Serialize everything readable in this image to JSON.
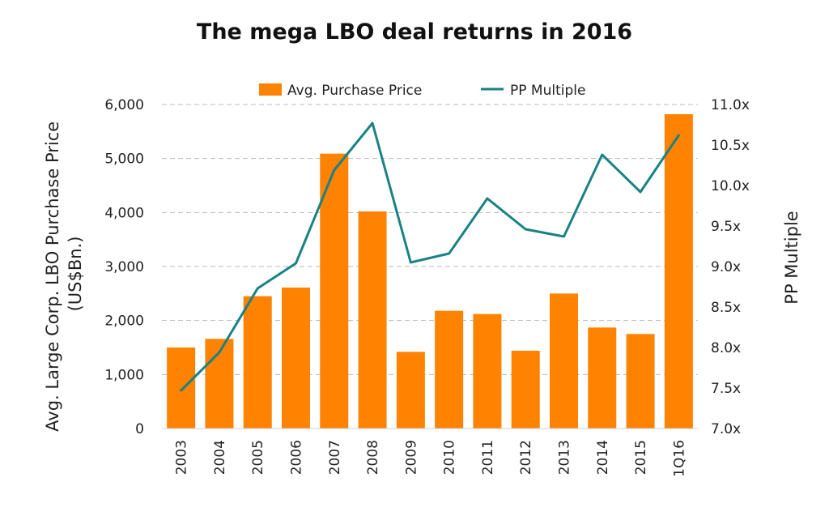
{
  "chart_data": {
    "type": "bar",
    "title": "The mega LBO deal returns in 2016",
    "categories": [
      "2003",
      "2004",
      "2005",
      "2006",
      "2007",
      "2008",
      "2009",
      "2010",
      "2011",
      "2012",
      "2013",
      "2014",
      "2015",
      "1Q16"
    ],
    "series": [
      {
        "name": "Avg. Purchase Price",
        "type": "bar",
        "axis": "left",
        "color": "#ff8200",
        "values": [
          1500,
          1660,
          2450,
          2610,
          5090,
          4020,
          1420,
          2180,
          2120,
          1440,
          2500,
          1870,
          1750,
          5820
        ]
      },
      {
        "name": "PP Multiple",
        "type": "line",
        "axis": "right",
        "color": "#1a8285",
        "values": [
          7.47,
          7.94,
          8.73,
          9.04,
          10.19,
          10.77,
          9.05,
          9.16,
          9.84,
          9.46,
          9.37,
          10.38,
          9.92,
          10.62
        ]
      }
    ],
    "y_left": {
      "label_lines": [
        "Avg. Large Corp. LBO Purchase Price",
        "(US$Bn.)"
      ],
      "range": [
        0,
        6000
      ],
      "ticks": [
        0,
        1000,
        2000,
        3000,
        4000,
        5000,
        6000
      ],
      "tick_labels": [
        "0",
        "1,000",
        "2,000",
        "3,000",
        "4,000",
        "5,000",
        "6,000"
      ]
    },
    "y_right": {
      "label": "PP Multiple",
      "range": [
        7.0,
        11.0
      ],
      "ticks": [
        7.0,
        7.5,
        8.0,
        8.5,
        9.0,
        9.5,
        10.0,
        10.5,
        11.0
      ],
      "tick_labels": [
        "7.0x",
        "7.5x",
        "8.0x",
        "8.5x",
        "9.0x",
        "9.5x",
        "10.0x",
        "10.5x",
        "11.0x"
      ]
    },
    "grid": true,
    "grid_style": "dashed",
    "legend_position": "top"
  }
}
